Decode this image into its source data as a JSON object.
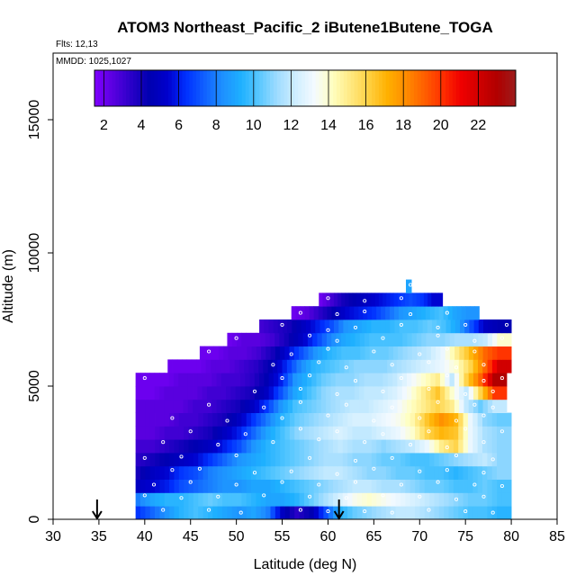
{
  "chart_data": {
    "type": "heatmap",
    "title": "ATOM3 Northeast_Pacific_2 iButene1Butene_TOGA",
    "flights_label": "Flts: 12,13",
    "dates_label": "MMDD: 1025,1027",
    "xlabel": "Latitude (deg N)",
    "ylabel": "Altitude (m)",
    "xlim": [
      30,
      85
    ],
    "ylim": [
      0,
      17500
    ],
    "xticks": [
      "30",
      "35",
      "40",
      "45",
      "50",
      "55",
      "60",
      "65",
      "70",
      "75",
      "80",
      "85"
    ],
    "yticks": [
      "0",
      "5000",
      "10000",
      "15000"
    ],
    "colorbar": {
      "min": 1.5,
      "max": 24,
      "ticks": [
        "2",
        "4",
        "6",
        "8",
        "10",
        "12",
        "14",
        "16",
        "18",
        "20",
        "22"
      ],
      "colors": [
        "#7f00ff",
        "#5a00e0",
        "#2a00c8",
        "#0000b0",
        "#0000cd",
        "#0030ff",
        "#1060ff",
        "#1e90ff",
        "#1eb0ff",
        "#5ac8ff",
        "#a0dcff",
        "#cfeeff",
        "#f4faff",
        "#ffffc0",
        "#ffe880",
        "#ffd040",
        "#ffb000",
        "#ff8c00",
        "#ff6000",
        "#ff3000",
        "#f00000",
        "#d00000",
        "#b00000",
        "#9c1c1c"
      ]
    },
    "markers_lat": [
      34.8,
      61.2
    ],
    "rows": [
      {
        "alt": 250,
        "lat0": 39.0,
        "lat1": 80.0,
        "v": [
          6.5,
          7.5,
          8.5,
          9.5,
          10.0,
          9.5,
          9.0,
          8.5,
          9.0,
          8.0,
          5.0,
          3.5,
          4.5,
          7.0,
          9.5,
          10.5,
          11.0,
          11.5,
          12.0,
          12.0,
          11.5,
          11.0,
          10.5,
          10.0,
          10.0,
          9.5
        ]
      },
      {
        "alt": 750,
        "lat0": 39.0,
        "lat1": 80.0,
        "v": [
          8.0,
          9.0,
          9.5,
          9.5,
          10.0,
          10.5,
          10.0,
          10.0,
          9.5,
          9.0,
          9.0,
          9.5,
          10.5,
          11.5,
          12.5,
          13.5,
          14.0,
          13.5,
          13.0,
          12.5,
          12.0,
          11.5,
          11.0,
          10.5,
          10.5,
          10.0
        ]
      },
      {
        "alt": 1250,
        "lat0": 39.0,
        "lat1": 80.0,
        "v": [
          5.0,
          5.5,
          6.0,
          7.0,
          7.5,
          8.0,
          8.5,
          8.5,
          9.0,
          9.0,
          9.5,
          10.0,
          10.5,
          11.0,
          11.5,
          12.0,
          12.0,
          11.5,
          11.5,
          11.0,
          10.5,
          10.5,
          10.0,
          10.0,
          10.5,
          10.0
        ]
      },
      {
        "alt": 1750,
        "lat0": 39.0,
        "lat1": 80.0,
        "v": [
          4.0,
          5.0,
          5.5,
          6.5,
          7.0,
          8.0,
          8.5,
          9.0,
          9.5,
          10.0,
          10.5,
          11.0,
          11.5,
          12.0,
          12.0,
          11.5,
          11.0,
          11.0,
          10.5,
          10.5,
          10.0,
          10.0,
          9.5,
          10.0,
          10.5,
          11.0
        ]
      },
      {
        "alt": 2250,
        "lat0": 39.0,
        "lat1": 80.0,
        "v": [
          3.5,
          4.0,
          4.5,
          5.0,
          5.5,
          6.5,
          7.5,
          8.5,
          9.0,
          9.5,
          10.0,
          10.5,
          11.0,
          11.5,
          11.5,
          11.0,
          11.0,
          10.5,
          10.5,
          10.0,
          10.0,
          10.5,
          11.0,
          11.5,
          12.0,
          11.0
        ]
      },
      {
        "alt": 2750,
        "lat0": 39.0,
        "lat1": 80.0,
        "v": [
          3.0,
          3.0,
          3.5,
          4.0,
          4.5,
          5.0,
          6.0,
          7.0,
          8.5,
          9.5,
          10.0,
          10.5,
          11.0,
          11.5,
          12.0,
          11.5,
          11.5,
          11.0,
          11.5,
          12.0,
          13.0,
          15.0,
          16.0,
          13.0,
          11.5,
          11.0
        ]
      },
      {
        "alt": 3250,
        "lat0": 39.0,
        "lat1": 80.0,
        "v": [
          2.5,
          2.5,
          3.0,
          3.0,
          3.5,
          4.0,
          5.0,
          6.0,
          7.5,
          9.0,
          10.0,
          11.0,
          11.5,
          12.0,
          12.5,
          12.0,
          12.0,
          12.5,
          13.0,
          14.0,
          16.0,
          17.0,
          16.5,
          13.0,
          11.5,
          11.0
        ]
      },
      {
        "alt": 3750,
        "lat0": 39.0,
        "lat1": 80.0,
        "v": [
          2.5,
          2.5,
          2.5,
          3.0,
          3.0,
          3.5,
          4.0,
          5.0,
          6.5,
          8.0,
          9.5,
          10.5,
          11.0,
          11.5,
          12.0,
          12.5,
          12.5,
          13.0,
          13.5,
          14.5,
          16.5,
          18.0,
          17.0,
          13.0,
          11.0,
          10.5
        ]
      },
      {
        "alt": 4250,
        "lat0": 39.0,
        "lat1": 79.5,
        "v": [
          2.5,
          2.5,
          2.5,
          2.5,
          3.0,
          3.0,
          3.5,
          4.0,
          5.0,
          6.5,
          8.5,
          10.0,
          10.5,
          11.0,
          11.5,
          12.0,
          12.0,
          12.5,
          13.0,
          14.0,
          15.0,
          16.0,
          15.0,
          12.0,
          10.5,
          12.0
        ]
      },
      {
        "alt": 4750,
        "lat0": 39.0,
        "lat1": 79.5,
        "v": [
          2.0,
          2.0,
          2.5,
          2.5,
          2.5,
          3.0,
          3.0,
          3.5,
          4.0,
          5.0,
          7.0,
          9.0,
          10.0,
          11.0,
          11.5,
          11.5,
          12.0,
          12.0,
          12.5,
          13.5,
          15.0,
          16.5,
          14.0,
          12.0,
          16.0,
          20.0
        ]
      },
      {
        "alt": 5250,
        "lat0": 39.0,
        "lat1": 79.5,
        "v": [
          2.0,
          2.0,
          2.0,
          2.5,
          2.5,
          2.5,
          3.0,
          3.0,
          3.5,
          4.5,
          6.0,
          8.5,
          9.5,
          10.5,
          11.0,
          11.0,
          11.5,
          11.5,
          12.0,
          13.0,
          14.0,
          15.0,
          12.0,
          16.0,
          19.0,
          23.0
        ]
      },
      {
        "alt": 5750,
        "lat0": 42.5,
        "lat1": 80.0,
        "v": [
          2.0,
          2.0,
          2.0,
          2.5,
          2.5,
          3.0,
          3.5,
          4.5,
          6.0,
          8.0,
          9.5,
          10.0,
          10.5,
          11.0,
          11.0,
          11.0,
          11.5,
          12.0,
          12.5,
          13.0,
          14.0,
          16.0,
          19.0,
          22.0
        ]
      },
      {
        "alt": 6250,
        "lat0": 46.0,
        "lat1": 80.0,
        "v": [
          2.0,
          2.0,
          2.5,
          2.5,
          3.0,
          4.0,
          5.5,
          7.0,
          8.5,
          9.5,
          10.0,
          10.0,
          10.5,
          10.5,
          11.0,
          11.5,
          12.0,
          13.0,
          15.0,
          17.0,
          19.0,
          20.0
        ]
      },
      {
        "alt": 6750,
        "lat0": 49.0,
        "lat1": 80.0,
        "v": [
          2.0,
          2.5,
          2.5,
          3.0,
          4.0,
          5.0,
          6.5,
          8.0,
          9.0,
          9.5,
          10.0,
          10.0,
          10.0,
          10.5,
          11.0,
          11.0,
          11.5,
          11.5,
          12.0,
          14.0
        ]
      },
      {
        "alt": 7250,
        "lat0": 52.5,
        "lat1": 80.0,
        "v": [
          3.0,
          3.5,
          4.0,
          5.0,
          6.0,
          7.0,
          8.5,
          9.0,
          9.5,
          9.5,
          10.0,
          10.0,
          10.5,
          10.0,
          9.0,
          7.0,
          5.0,
          4.5
        ]
      },
      {
        "alt": 7750,
        "lat0": 56.0,
        "lat1": 76.5,
        "v": [
          2.0,
          2.5,
          3.5,
          4.5,
          5.5,
          6.0,
          6.5,
          7.5,
          8.5,
          9.0,
          9.5,
          10.0,
          9.0,
          8.5
        ]
      },
      {
        "alt": 8250,
        "lat0": 59.0,
        "lat1": 72.5,
        "v": [
          2.0,
          3.0,
          4.0,
          4.5,
          5.0,
          5.5,
          6.0,
          6.5,
          7.0,
          6.5,
          5.5
        ]
      },
      {
        "alt": 8750,
        "lat0": 68.5,
        "lat1": 69.1,
        "v": [
          9.0
        ]
      }
    ],
    "samples": [
      [
        42,
        350
      ],
      [
        47,
        350
      ],
      [
        50.5,
        250
      ],
      [
        57,
        350
      ],
      [
        60,
        300
      ],
      [
        64,
        300
      ],
      [
        67,
        250
      ],
      [
        71,
        350
      ],
      [
        75,
        300
      ],
      [
        78,
        250
      ],
      [
        40,
        900
      ],
      [
        44,
        800
      ],
      [
        48,
        850
      ],
      [
        53,
        900
      ],
      [
        58,
        850
      ],
      [
        62,
        800
      ],
      [
        66,
        900
      ],
      [
        70,
        850
      ],
      [
        74,
        750
      ],
      [
        77,
        850
      ],
      [
        41,
        1300
      ],
      [
        45,
        1400
      ],
      [
        50,
        1300
      ],
      [
        55,
        1400
      ],
      [
        59,
        1300
      ],
      [
        63,
        1400
      ],
      [
        68,
        1300
      ],
      [
        72,
        1400
      ],
      [
        76,
        1300
      ],
      [
        79,
        1250
      ],
      [
        43,
        1850
      ],
      [
        46,
        1900
      ],
      [
        52,
        1750
      ],
      [
        56,
        1800
      ],
      [
        61,
        1700
      ],
      [
        65,
        1900
      ],
      [
        70,
        1800
      ],
      [
        73,
        1850
      ],
      [
        77,
        1750
      ],
      [
        40,
        2300
      ],
      [
        44,
        2350
      ],
      [
        50,
        2400
      ],
      [
        58,
        2300
      ],
      [
        63,
        2200
      ],
      [
        67,
        2300
      ],
      [
        74,
        2400
      ],
      [
        78,
        2250
      ],
      [
        42,
        2900
      ],
      [
        48,
        2800
      ],
      [
        54,
        2900
      ],
      [
        59,
        3000
      ],
      [
        64,
        2900
      ],
      [
        69,
        2800
      ],
      [
        73,
        2700
      ],
      [
        77,
        2900
      ],
      [
        45,
        3300
      ],
      [
        51,
        3200
      ],
      [
        57,
        3400
      ],
      [
        61,
        3300
      ],
      [
        66,
        3200
      ],
      [
        71,
        3300
      ],
      [
        75,
        3400
      ],
      [
        79,
        3300
      ],
      [
        43,
        3800
      ],
      [
        49,
        3700
      ],
      [
        55,
        3800
      ],
      [
        60,
        3900
      ],
      [
        65,
        3700
      ],
      [
        70,
        3800
      ],
      [
        74,
        3700
      ],
      [
        77,
        3900
      ],
      [
        47,
        4300
      ],
      [
        53,
        4200
      ],
      [
        57,
        4400
      ],
      [
        62,
        4300
      ],
      [
        67,
        4200
      ],
      [
        72,
        4400
      ],
      [
        76,
        4300
      ],
      [
        78,
        4200
      ],
      [
        40,
        5300
      ],
      [
        52,
        4800
      ],
      [
        57,
        4900
      ],
      [
        61,
        4700
      ],
      [
        66,
        4800
      ],
      [
        71,
        4900
      ],
      [
        75,
        4700
      ],
      [
        78,
        4800
      ],
      [
        55,
        5300
      ],
      [
        58,
        5400
      ],
      [
        63,
        5200
      ],
      [
        68,
        5300
      ],
      [
        73,
        5400
      ],
      [
        77,
        5200
      ],
      [
        79,
        5300
      ],
      [
        54,
        5800
      ],
      [
        59,
        5900
      ],
      [
        62,
        5700
      ],
      [
        67,
        5800
      ],
      [
        71,
        5900
      ],
      [
        74,
        5700
      ],
      [
        77,
        5800
      ],
      [
        47,
        6300
      ],
      [
        56,
        6200
      ],
      [
        60,
        6400
      ],
      [
        65,
        6300
      ],
      [
        70,
        6200
      ],
      [
        73,
        6400
      ],
      [
        76,
        6300
      ],
      [
        50,
        6800
      ],
      [
        58,
        6900
      ],
      [
        61,
        6700
      ],
      [
        66,
        6800
      ],
      [
        72,
        6900
      ],
      [
        76,
        6700
      ],
      [
        79,
        6800
      ],
      [
        55,
        7300
      ],
      [
        60,
        7100
      ],
      [
        63,
        7200
      ],
      [
        68,
        7300
      ],
      [
        72,
        7200
      ],
      [
        75,
        7300
      ],
      [
        79.5,
        7300
      ],
      [
        57,
        7750
      ],
      [
        61,
        7700
      ],
      [
        64,
        7800
      ],
      [
        69,
        7700
      ],
      [
        73,
        7750
      ],
      [
        60,
        8300
      ],
      [
        64,
        8200
      ],
      [
        68,
        8300
      ],
      [
        69,
        8800
      ]
    ]
  }
}
